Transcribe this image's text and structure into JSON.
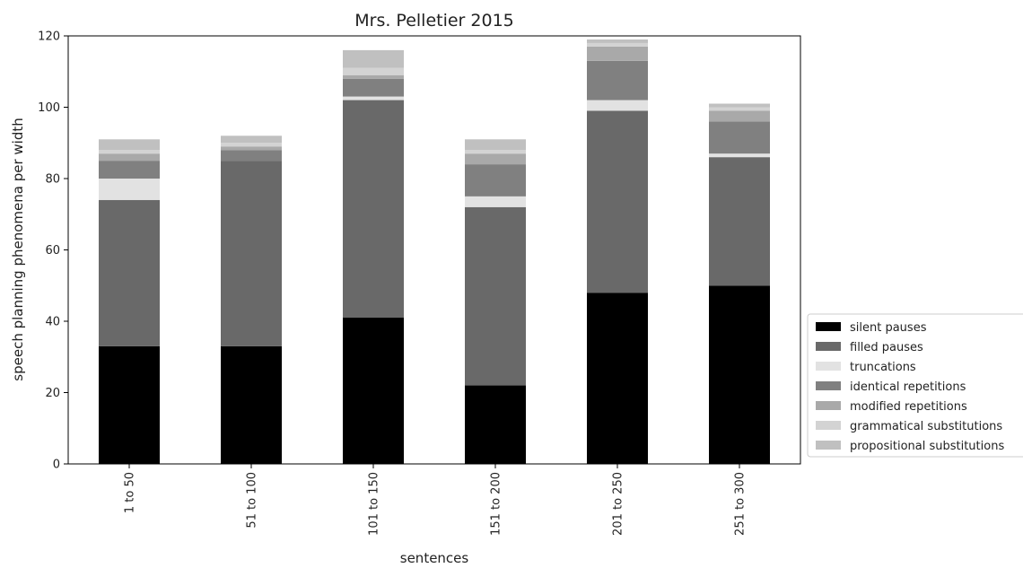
{
  "chart_data": {
    "type": "bar",
    "stacked": true,
    "title": "Mrs. Pelletier 2015",
    "xlabel": "sentences",
    "ylabel": "speech planning phenomena per width",
    "ylim": [
      0,
      120
    ],
    "yticks": [
      "0",
      "20",
      "40",
      "60",
      "80",
      "100",
      "120"
    ],
    "categories": [
      "1 to 50",
      "51 to 100",
      "101 to 150",
      "151 to 200",
      "201 to 250",
      "251 to 300"
    ],
    "legend_position": "right",
    "series": [
      {
        "name": "silent pauses",
        "color": "#000000",
        "values": [
          33,
          33,
          41,
          22,
          48,
          50
        ]
      },
      {
        "name": "filled pauses",
        "color": "#696969",
        "values": [
          41,
          52,
          61,
          50,
          51,
          36
        ]
      },
      {
        "name": "truncations",
        "color": "#e2e2e2",
        "values": [
          6,
          0,
          1,
          3,
          3,
          1
        ]
      },
      {
        "name": "identical repetitions",
        "color": "#808080",
        "values": [
          5,
          3,
          5,
          9,
          11,
          9
        ]
      },
      {
        "name": "modified repetitions",
        "color": "#a9a9a9",
        "values": [
          2,
          1,
          1,
          3,
          4,
          3
        ]
      },
      {
        "name": "grammatical substitutions",
        "color": "#d3d3d3",
        "values": [
          1,
          1,
          2,
          1,
          1,
          1
        ]
      },
      {
        "name": "propositional substitutions",
        "color": "#c0c0c0",
        "values": [
          3,
          2,
          5,
          3,
          1,
          1
        ]
      }
    ]
  }
}
